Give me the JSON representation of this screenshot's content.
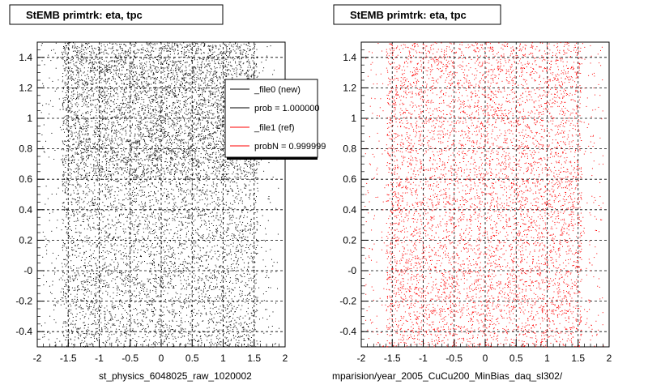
{
  "chart_data": [
    {
      "type": "scatter",
      "title": "StEMB primtrk: eta, tpc",
      "xlabel": "st_physics_6048025_raw_1020002",
      "ylabel": "",
      "xlim": [
        -2,
        2
      ],
      "ylim": [
        -0.5,
        1.5
      ],
      "x_ticks": [
        "-2",
        "-1.5",
        "-1",
        "-0.5",
        "0",
        "0.5",
        "1",
        "1.5",
        "2"
      ],
      "y_ticks": [
        "-0.4",
        "-0.2",
        "-0",
        "0.2",
        "0.4",
        "0.6",
        "0.8",
        "1",
        "1.2",
        "1.4"
      ],
      "grid": true,
      "series": [
        {
          "name": "_file0 (new)",
          "color": "#000000",
          "x_range": [
            -1.6,
            1.55
          ],
          "y_range": [
            -0.5,
            1.5
          ]
        }
      ],
      "legend": {
        "placement": "top-right",
        "entries": [
          {
            "label": "_file0 (new)",
            "color": "#000000"
          },
          {
            "label": "prob = 1.000000",
            "color": "#000000"
          },
          {
            "label": "_file1 (ref)",
            "color": "#ff0000"
          },
          {
            "label": "probN = 0.999999",
            "color": "#ff0000"
          }
        ]
      }
    },
    {
      "type": "scatter",
      "title": "StEMB primtrk: eta, tpc",
      "xlabel": "mparision/year_2005_CuCu200_MinBias_daq_sl302/",
      "ylabel": "",
      "xlim": [
        -2,
        2
      ],
      "ylim": [
        -0.5,
        1.5
      ],
      "x_ticks": [
        "-2",
        "-1.5",
        "-1",
        "-0.5",
        "0",
        "0.5",
        "1",
        "1.5",
        "2"
      ],
      "y_ticks": [
        "-0.4",
        "-0.2",
        "-0",
        "0.2",
        "0.4",
        "0.6",
        "0.8",
        "1",
        "1.2",
        "1.4"
      ],
      "grid": true,
      "series": [
        {
          "name": "_file1 (ref)",
          "color": "#ff0000",
          "x_range": [
            -1.6,
            1.55
          ],
          "y_range": [
            -0.5,
            1.5
          ]
        }
      ]
    }
  ]
}
